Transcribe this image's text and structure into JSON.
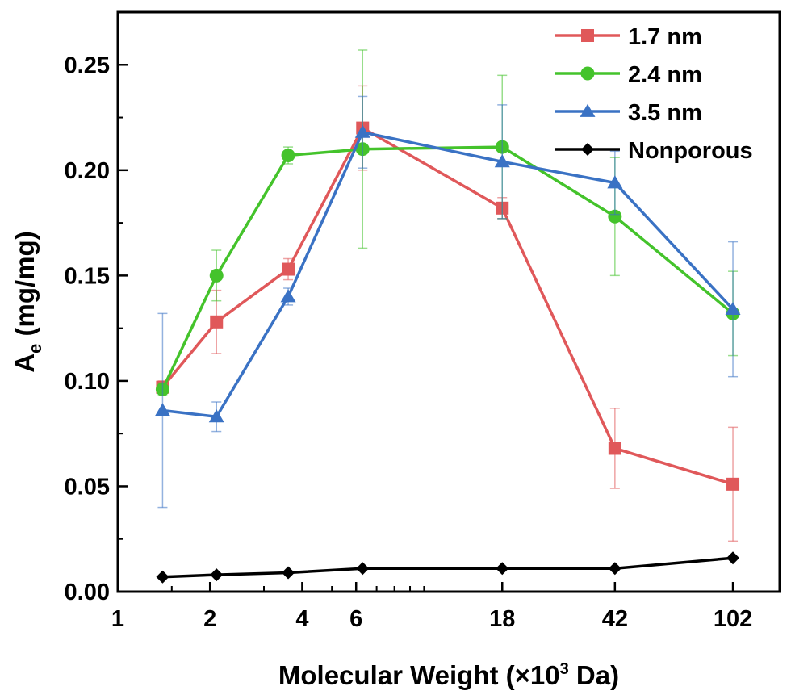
{
  "chart_data": {
    "type": "line",
    "x_scale": "log",
    "xlabel": "Molecular Weight (×10³ Da)",
    "xlabel_main": "Molecular Weight (×10",
    "xlabel_sup": "3",
    "xlabel_tail": " Da)",
    "ylabel": "Ae (mg/mg)",
    "ylabel_main": "A",
    "ylabel_sub": "e",
    "ylabel_tail": " (mg/mg)",
    "xlim": [
      1,
      145
    ],
    "ylim": [
      0,
      0.275
    ],
    "x_ticks": [
      1,
      2,
      4,
      6,
      18,
      42,
      102
    ],
    "x_tick_labels": [
      "1",
      "2",
      "4",
      "6",
      "18",
      "42",
      "102"
    ],
    "y_ticks": [
      0.0,
      0.05,
      0.1,
      0.15,
      0.2,
      0.25
    ],
    "y_tick_labels": [
      "0.00",
      "0.05",
      "0.10",
      "0.15",
      "0.20",
      "0.25"
    ],
    "x": [
      1.4,
      2.1,
      3.6,
      6.3,
      18,
      42,
      102
    ],
    "legend_position": "top-right",
    "series": [
      {
        "name": "1.7 nm",
        "color": "#e0585a",
        "marker": "square",
        "values": [
          0.097,
          0.128,
          0.153,
          0.22,
          0.182,
          0.068,
          0.051
        ],
        "errors": [
          0.003,
          0.015,
          0.005,
          0.02,
          0.005,
          0.019,
          0.027
        ]
      },
      {
        "name": "2.4 nm",
        "color": "#44c32b",
        "marker": "circle",
        "values": [
          0.096,
          0.15,
          0.207,
          0.21,
          0.211,
          0.178,
          0.132
        ],
        "errors": [
          0.003,
          0.012,
          0.004,
          0.047,
          0.034,
          0.028,
          0.02
        ]
      },
      {
        "name": "3.5 nm",
        "color": "#3a72c4",
        "marker": "triangle",
        "values": [
          0.086,
          0.083,
          0.14,
          0.218,
          0.204,
          0.194,
          0.134
        ],
        "errors": [
          0.046,
          0.007,
          0.004,
          0.017,
          0.027,
          0.015,
          0.032
        ]
      },
      {
        "name": "Nonporous",
        "color": "#000000",
        "marker": "diamond",
        "values": [
          0.007,
          0.008,
          0.009,
          0.011,
          0.011,
          0.011,
          0.016
        ],
        "errors": [
          0,
          0,
          0,
          0,
          0,
          0,
          0
        ]
      }
    ]
  }
}
